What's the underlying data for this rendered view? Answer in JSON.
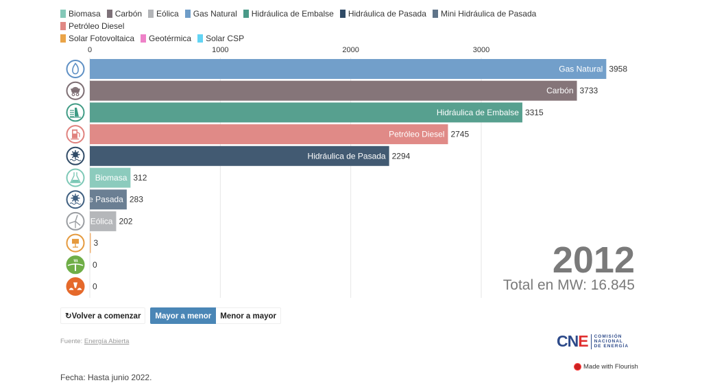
{
  "legend": [
    {
      "label": "Biomasa",
      "color": "#84c8b8"
    },
    {
      "label": "Carbón",
      "color": "#7d7178"
    },
    {
      "label": "Eólica",
      "color": "#b3b5b8"
    },
    {
      "label": "Gas Natural",
      "color": "#6f9dc8"
    },
    {
      "label": "Hidráulica de Embalse",
      "color": "#4a9a88"
    },
    {
      "label": "Hidráulica de Pasada",
      "color": "#2f4a66"
    },
    {
      "label": "Mini Hidráulica de Pasada",
      "color": "#5f7489"
    },
    {
      "label": "Petróleo Diesel",
      "color": "#e08884"
    },
    {
      "label": "Solar Fotovoltaica",
      "color": "#eaa448"
    },
    {
      "label": "Geotérmica",
      "color": "#ee82c8"
    },
    {
      "label": "Solar CSP",
      "color": "#62d4f4"
    }
  ],
  "chart_data": {
    "type": "bar",
    "orientation": "horizontal",
    "sort": "descending",
    "xlim": [
      0,
      4000
    ],
    "xticks": [
      0,
      1000,
      2000,
      3000
    ],
    "xtick_labels": [
      "0",
      "1000",
      "2000",
      "3000"
    ],
    "grid": true,
    "units": "MW",
    "categories": [
      "Gas Natural",
      "Carbón",
      "Hidráulica de Embalse",
      "Petróleo Diesel",
      "Hidráulica de Pasada",
      "Biomasa",
      "Mini Hidráulica de Pasada",
      "Eólica",
      "Solar Fotovoltaica",
      "Solar CSP",
      "Geotérmica"
    ],
    "bar_labels_shown": [
      "Gas Natural",
      "Carbón",
      "Hidráulica de Embalse",
      "Petróleo Diesel",
      "Hidráulica de Pasada",
      "Biomasa",
      "de Pasada",
      "Eólica",
      "",
      "",
      ""
    ],
    "values": [
      3958,
      3733,
      3315,
      2745,
      2294,
      312,
      283,
      202,
      3,
      0,
      0
    ],
    "colors": [
      "#729fca",
      "#857579",
      "#57a08f",
      "#e08a87",
      "#425a72",
      "#8ccbbd",
      "#6b7f93",
      "#b5b7ba",
      "#efb071",
      "#6fae47",
      "#e5692b"
    ],
    "icons": [
      "gas-flame-icon",
      "coal-cart-icon",
      "dam-icon",
      "fuel-pump-icon",
      "run-of-river-icon",
      "biomass-flask-icon",
      "mini-hydro-icon",
      "wind-turbine-icon",
      "solar-panel-icon",
      "solar-csp-icon",
      "geothermal-icon"
    ],
    "icon_colors": [
      "#5d8fc4",
      "#7d6e73",
      "#3f9b84",
      "#e0827e",
      "#2f4a66",
      "#7cc8b6",
      "#3f5f80",
      "#9a9da1",
      "#e59a3e",
      "#6fae47",
      "#e5692b"
    ],
    "year": "2012",
    "total_label": "Total en MW: 16.845"
  },
  "controls": {
    "restart_label": "Volver a comenzar",
    "restart_icon": "↻",
    "desc_label": "Mayor a menor",
    "asc_label": "Menor a mayor"
  },
  "footer": {
    "source_prefix": "Fuente: ",
    "source_link": "Energía Abierta",
    "date": "Fecha: Hasta junio 2022.",
    "logo_big": "CNE",
    "logo_lines": [
      "COMISIÓN",
      "NACIONAL",
      "DE ENERGÍA"
    ],
    "made_with": "Made with Flourish"
  }
}
